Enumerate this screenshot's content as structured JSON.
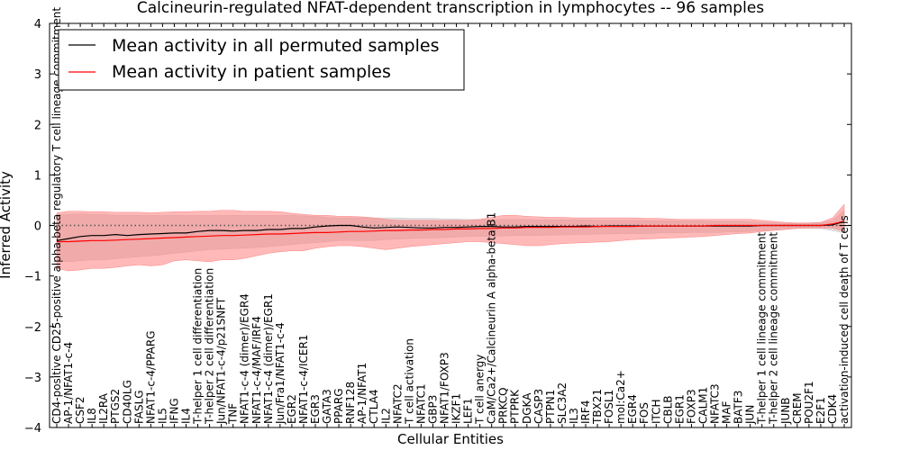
{
  "chart_data": {
    "type": "line",
    "title": "Calcineurin-regulated NFAT-dependent transcription in lymphocytes -- 96 samples",
    "xlabel": "Cellular Entities",
    "ylabel": "Inferred Activity",
    "ylim": [
      -4,
      4
    ],
    "yticks": [
      -4,
      -3,
      -2,
      -1,
      0,
      1,
      2,
      3,
      4
    ],
    "ytick_labels": [
      "−4",
      "−3",
      "−2",
      "−1",
      "0",
      "1",
      "2",
      "3",
      "4"
    ],
    "zero_line": "dotted",
    "legend_position": "top-left",
    "categories": [
      "CD4-positive CD25-positive alpha-beta regulatory T cell lineage commitment",
      "AP-1/NFAT1-c-4",
      "CSF2",
      "IL8",
      "IL2RA",
      "PTGS2",
      "CD40LG",
      "FASLG",
      "NFAT1-c-4/PPARG",
      "IL5",
      "IFNG",
      "IL4",
      "T-helper 1 cell differentiation",
      "T-helper 2 cell differentiation",
      "Jun/NFAT1-c-4/p21SNFT",
      "TNF",
      "NFAT1-c-4 (dimer)/EGR4",
      "NFAT1-c-4/MAF/IRF4",
      "NFAT1-c-4 (dimer)/EGR1",
      "Jun/Fra1/NFAT1-c-4",
      "EGR2",
      "NFAT1-c-4/ICER1",
      "EGR3",
      "GATA3",
      "PPARG",
      "RNF128",
      "AP-1/NFAT1",
      "CTLA4",
      "IL2",
      "NFATC2",
      "T cell activation",
      "NFATC1",
      "GBP3",
      "NFAT1/FOXP3",
      "IKZF1",
      "LEF1",
      "T cell anergy",
      "CaM/Ca2+/Calcineurin A alpha-beta B1",
      "PRKCQ",
      "PTPRK",
      "DGKA",
      "CASP3",
      "PTPN1",
      "SLC3A2",
      "IL3",
      "IRF4",
      "TBX21",
      "FOSL1",
      "mol:Ca2+",
      "EGR4",
      "FOS",
      "ITCH",
      "CBLB",
      "EGR1",
      "FOXP3",
      "CALM1",
      "NFATC3",
      "MAF",
      "BATF3",
      "JUN",
      "T-helper 1 cell lineage commitment",
      "T-helper 2 cell lineage commitment",
      "JUNB",
      "CREM",
      "POU2F1",
      "E2F1",
      "CDK4",
      "activation-induced cell death of T cells"
    ],
    "series": [
      {
        "name": "Mean activity in all permuted samples",
        "color": "#000000",
        "band_color": "#c8c8c8",
        "values": [
          -0.3,
          -0.26,
          -0.22,
          -0.2,
          -0.2,
          -0.18,
          -0.2,
          -0.18,
          -0.17,
          -0.16,
          -0.15,
          -0.15,
          -0.12,
          -0.1,
          -0.1,
          -0.11,
          -0.1,
          -0.1,
          -0.08,
          -0.08,
          -0.06,
          -0.06,
          -0.03,
          -0.01,
          0,
          0,
          -0.03,
          -0.05,
          -0.04,
          -0.03,
          -0.04,
          -0.05,
          -0.05,
          -0.04,
          -0.04,
          -0.03,
          -0.02,
          -0.02,
          -0.03,
          -0.03,
          -0.02,
          -0.02,
          -0.02,
          -0.02,
          -0.02,
          -0.01,
          -0.02,
          -0.01,
          -0.01,
          -0.01,
          -0.01,
          -0.01,
          -0.01,
          -0.01,
          -0.01,
          -0.01,
          -0.01,
          -0.01,
          -0.01,
          -0.01,
          0,
          0,
          0,
          0,
          0,
          0,
          0.01,
          0.08
        ],
        "upper": [
          0.2,
          0.22,
          0.23,
          0.22,
          0.22,
          0.2,
          0.2,
          0.2,
          0.2,
          0.2,
          0.2,
          0.2,
          0.2,
          0.2,
          0.2,
          0.2,
          0.2,
          0.2,
          0.2,
          0.2,
          0.2,
          0.19,
          0.18,
          0.16,
          0.15,
          0.15,
          0.15,
          0.15,
          0.15,
          0.15,
          0.14,
          0.14,
          0.14,
          0.13,
          0.13,
          0.12,
          0.12,
          0.12,
          0.12,
          0.12,
          0.12,
          0.11,
          0.11,
          0.11,
          0.11,
          0.11,
          0.1,
          0.1,
          0.1,
          0.1,
          0.1,
          0.09,
          0.09,
          0.09,
          0.09,
          0.09,
          0.08,
          0.08,
          0.08,
          0.07,
          0.06,
          0.05,
          0.04,
          0.04,
          0.05,
          0.05,
          0.1,
          0.3
        ],
        "lower": [
          -0.7,
          -0.72,
          -0.7,
          -0.68,
          -0.68,
          -0.66,
          -0.64,
          -0.62,
          -0.6,
          -0.58,
          -0.55,
          -0.53,
          -0.5,
          -0.48,
          -0.47,
          -0.46,
          -0.45,
          -0.44,
          -0.42,
          -0.4,
          -0.38,
          -0.36,
          -0.34,
          -0.32,
          -0.3,
          -0.3,
          -0.3,
          -0.3,
          -0.28,
          -0.27,
          -0.26,
          -0.25,
          -0.25,
          -0.24,
          -0.23,
          -0.22,
          -0.22,
          -0.21,
          -0.21,
          -0.2,
          -0.2,
          -0.2,
          -0.19,
          -0.19,
          -0.18,
          -0.18,
          -0.17,
          -0.17,
          -0.16,
          -0.16,
          -0.16,
          -0.15,
          -0.15,
          -0.15,
          -0.14,
          -0.14,
          -0.14,
          -0.13,
          -0.13,
          -0.12,
          -0.1,
          -0.08,
          -0.06,
          -0.05,
          -0.06,
          -0.06,
          -0.1,
          -0.15
        ]
      },
      {
        "name": "Mean activity in patient samples",
        "color": "#ff0000",
        "band_color": "#ff8080",
        "values": [
          -0.32,
          -0.32,
          -0.31,
          -0.3,
          -0.3,
          -0.29,
          -0.28,
          -0.27,
          -0.26,
          -0.25,
          -0.24,
          -0.23,
          -0.22,
          -0.21,
          -0.2,
          -0.2,
          -0.19,
          -0.18,
          -0.17,
          -0.17,
          -0.16,
          -0.15,
          -0.14,
          -0.14,
          -0.13,
          -0.12,
          -0.12,
          -0.11,
          -0.1,
          -0.1,
          -0.09,
          -0.09,
          -0.08,
          -0.08,
          -0.07,
          -0.07,
          -0.06,
          -0.06,
          -0.05,
          -0.05,
          -0.04,
          -0.04,
          -0.04,
          -0.03,
          -0.03,
          -0.03,
          -0.02,
          -0.02,
          -0.02,
          -0.02,
          -0.01,
          -0.01,
          -0.01,
          -0.01,
          -0.01,
          -0.01,
          0,
          0,
          0,
          0,
          0,
          0,
          0,
          0,
          0,
          0,
          0.03,
          0.08
        ],
        "upper": [
          0.25,
          0.28,
          0.28,
          0.27,
          0.27,
          0.26,
          0.26,
          0.26,
          0.25,
          0.26,
          0.27,
          0.27,
          0.28,
          0.28,
          0.3,
          0.3,
          0.28,
          0.28,
          0.28,
          0.27,
          0.24,
          0.22,
          0.2,
          0.2,
          0.18,
          0.18,
          0.17,
          0.15,
          0.12,
          0.1,
          0.1,
          0.1,
          0.1,
          0.1,
          0.1,
          0.1,
          0.12,
          0.16,
          0.2,
          0.2,
          0.18,
          0.17,
          0.16,
          0.16,
          0.15,
          0.15,
          0.15,
          0.15,
          0.15,
          0.15,
          0.14,
          0.14,
          0.13,
          0.12,
          0.12,
          0.12,
          0.12,
          0.12,
          0.12,
          0.12,
          0.1,
          0.08,
          0.06,
          0.05,
          0.05,
          0.06,
          0.15,
          0.42
        ],
        "lower": [
          -0.85,
          -0.9,
          -0.88,
          -0.85,
          -0.85,
          -0.83,
          -0.8,
          -0.78,
          -0.8,
          -0.78,
          -0.7,
          -0.68,
          -0.7,
          -0.72,
          -0.68,
          -0.68,
          -0.65,
          -0.6,
          -0.55,
          -0.52,
          -0.5,
          -0.5,
          -0.45,
          -0.42,
          -0.4,
          -0.4,
          -0.42,
          -0.45,
          -0.48,
          -0.45,
          -0.42,
          -0.4,
          -0.38,
          -0.36,
          -0.34,
          -0.32,
          -0.32,
          -0.34,
          -0.36,
          -0.38,
          -0.4,
          -0.4,
          -0.38,
          -0.36,
          -0.35,
          -0.34,
          -0.33,
          -0.32,
          -0.3,
          -0.28,
          -0.27,
          -0.26,
          -0.25,
          -0.24,
          -0.23,
          -0.22,
          -0.2,
          -0.18,
          -0.16,
          -0.15,
          -0.12,
          -0.1,
          -0.08,
          -0.06,
          -0.05,
          -0.05,
          -0.05,
          -0.12
        ]
      }
    ]
  }
}
